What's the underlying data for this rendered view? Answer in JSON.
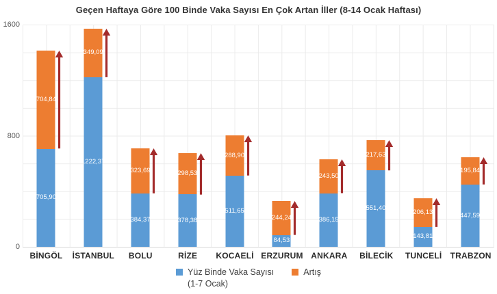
{
  "chart_data": {
    "type": "bar",
    "stacked": true,
    "title": "Geçen Haftaya Göre 100 Binde Vaka Sayısı En Çok Artan İller (8-14 Ocak Haftası)",
    "categories": [
      "BİNGÖL",
      "İSTANBUL",
      "BOLU",
      "RİZE",
      "KOCAELİ",
      "ERZURUM",
      "ANKARA",
      "BİLECİK",
      "TUNCELİ",
      "TRABZON"
    ],
    "series": [
      {
        "name": "Yüz Binde Vaka Sayısı (1-7 Ocak)",
        "color": "#5B9BD5",
        "values": [
          705.9,
          1222.37,
          384.37,
          378.38,
          511.65,
          84.53,
          386.15,
          551.4,
          143.81,
          447.59
        ],
        "labels": [
          "705,90",
          "1222,37",
          "384,37",
          "378,38",
          "511,65",
          "84,53",
          "386,15",
          "551,40",
          "143,81",
          "447,59"
        ]
      },
      {
        "name": "Artış",
        "color": "#ED7D31",
        "values": [
          704.84,
          349.09,
          323.69,
          298.53,
          288.9,
          244.24,
          243.5,
          217.63,
          206.13,
          195.84
        ],
        "labels": [
          "704,84",
          "349,09",
          "323,69",
          "298,53",
          "288,90",
          "244,24",
          "243,50",
          "217,63",
          "206,13",
          "195,84"
        ]
      }
    ],
    "ylim": [
      0,
      1600
    ],
    "yticks": [
      0,
      800,
      1600
    ],
    "grid_interval": 200,
    "grid": true,
    "legend_position": "bottom",
    "arrow_annotation": {
      "shape": "up-arrow",
      "color": "#A32B2B",
      "spans": "Artış segment of each bar"
    }
  },
  "legend": {
    "items": [
      {
        "lines": [
          "Yüz Binde Vaka Sayısı",
          "(1-7 Ocak)"
        ],
        "color": "#5B9BD5"
      },
      {
        "lines": [
          "Artış"
        ],
        "color": "#ED7D31"
      }
    ]
  },
  "colors": {
    "background": "#FFFFFF",
    "grid": "#EBEBEB",
    "axis_line": "#D9D9D9",
    "title_text": "#333333",
    "tick_text": "#595959",
    "category_text": "#2B2B2B",
    "bar_label_text": "#FFFFFF",
    "series_blue": "#5B9BD5",
    "series_orange": "#ED7D31",
    "arrow_red": "#A32B2B"
  }
}
